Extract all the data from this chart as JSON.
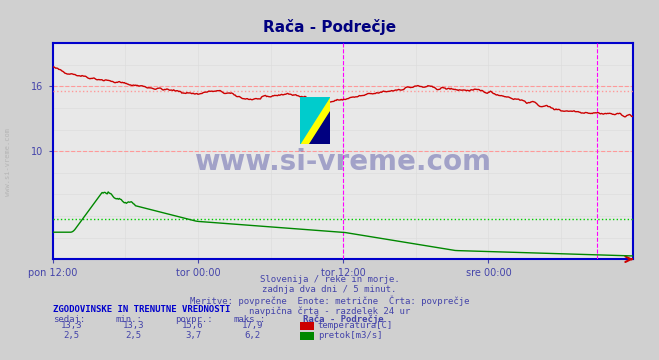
{
  "title": "Rača - Podrečje",
  "title_color": "#000080",
  "bg_color": "#d0d0d0",
  "plot_bg_color": "#e8e8e8",
  "grid_color_main": "#ff9999",
  "grid_color_minor": "#dddddd",
  "x_labels": [
    "pon 12:00",
    "tor 00:00",
    "tor 12:00",
    "sre 00:00"
  ],
  "x_tick_positions": [
    0,
    144,
    288,
    432
  ],
  "total_points": 576,
  "ylim": [
    0,
    20
  ],
  "ylabel_shown": [
    16,
    10
  ],
  "temp_color": "#cc0000",
  "flow_color": "#008800",
  "avg_temp_color": "#ff9999",
  "avg_flow_color": "#00cc00",
  "avg_temp": 15.6,
  "avg_flow": 3.7,
  "vline_color": "#ff00ff",
  "vline_positions": [
    288,
    540
  ],
  "axis_color": "#0000cc",
  "watermark": "www.si-vreme.com",
  "watermark_color": "#000080",
  "watermark_alpha": 0.3,
  "subtitle_lines": [
    "Slovenija / reke in morje.",
    "zadnja dva dni / 5 minut.",
    "Meritve: povprečne  Enote: metrične  Črta: povprečje",
    "navpična črta - razdelek 24 ur"
  ],
  "subtitle_color": "#4444aa",
  "table_header": "ZGODOVINSKE IN TRENUTNE VREDNOSTI",
  "table_header_color": "#0000cc",
  "col_headers": [
    "sedaj:",
    "min.:",
    "povpr.:",
    "maks.:",
    "Rača - Podrečje"
  ],
  "temp_row": [
    "13,3",
    "13,3",
    "15,6",
    "17,9"
  ],
  "flow_row": [
    "2,5",
    "2,5",
    "3,7",
    "6,2"
  ],
  "temp_label": "temperatura[C]",
  "flow_label": "pretok[m3/s]",
  "left_label": "www.si-vreme.com",
  "temp_square_color": "#cc0000",
  "flow_square_color": "#008800"
}
